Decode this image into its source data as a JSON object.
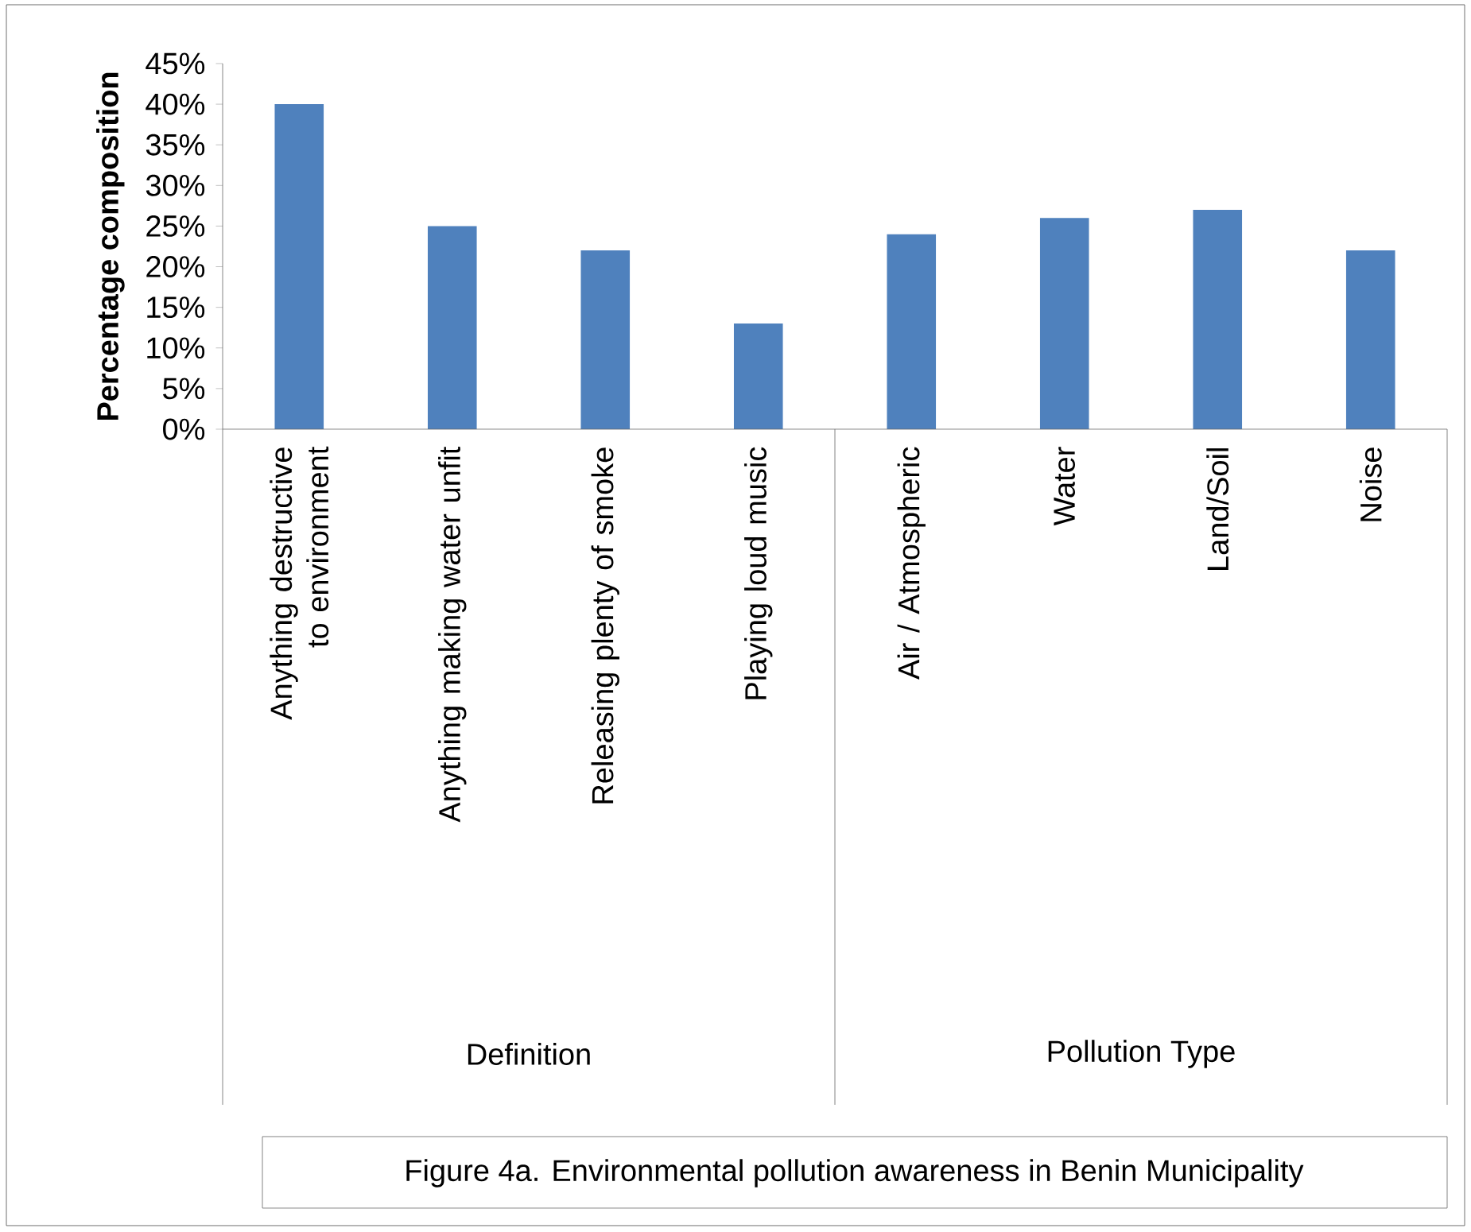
{
  "chart_data": {
    "type": "bar",
    "ylabel": "Percentage composition",
    "categories": [
      "Anything destructive to environment",
      "Anything making water unfit",
      "Releasing plenty of smoke",
      "Playing loud music",
      "Air / Atmospheric",
      "Water",
      "Land/Soil",
      "Noise"
    ],
    "values": [
      40,
      25,
      22,
      13,
      24,
      26,
      27,
      22
    ],
    "color": "#4f81bd",
    "ylim": [
      0,
      45
    ],
    "yticks": [
      {
        "value": 0,
        "label": "0%"
      },
      {
        "value": 5,
        "label": "5%"
      },
      {
        "value": 10,
        "label": "10%"
      },
      {
        "value": 15,
        "label": "15%"
      },
      {
        "value": 20,
        "label": "20%"
      },
      {
        "value": 25,
        "label": "25%"
      },
      {
        "value": 30,
        "label": "30%"
      },
      {
        "value": 35,
        "label": "35%"
      },
      {
        "value": 40,
        "label": "40%"
      },
      {
        "value": 45,
        "label": "45%"
      }
    ],
    "annotations": [
      "Definition",
      "Pollution Type",
      "Figure 4a.  Environmental pollution awareness in Benin Municipality"
    ]
  }
}
